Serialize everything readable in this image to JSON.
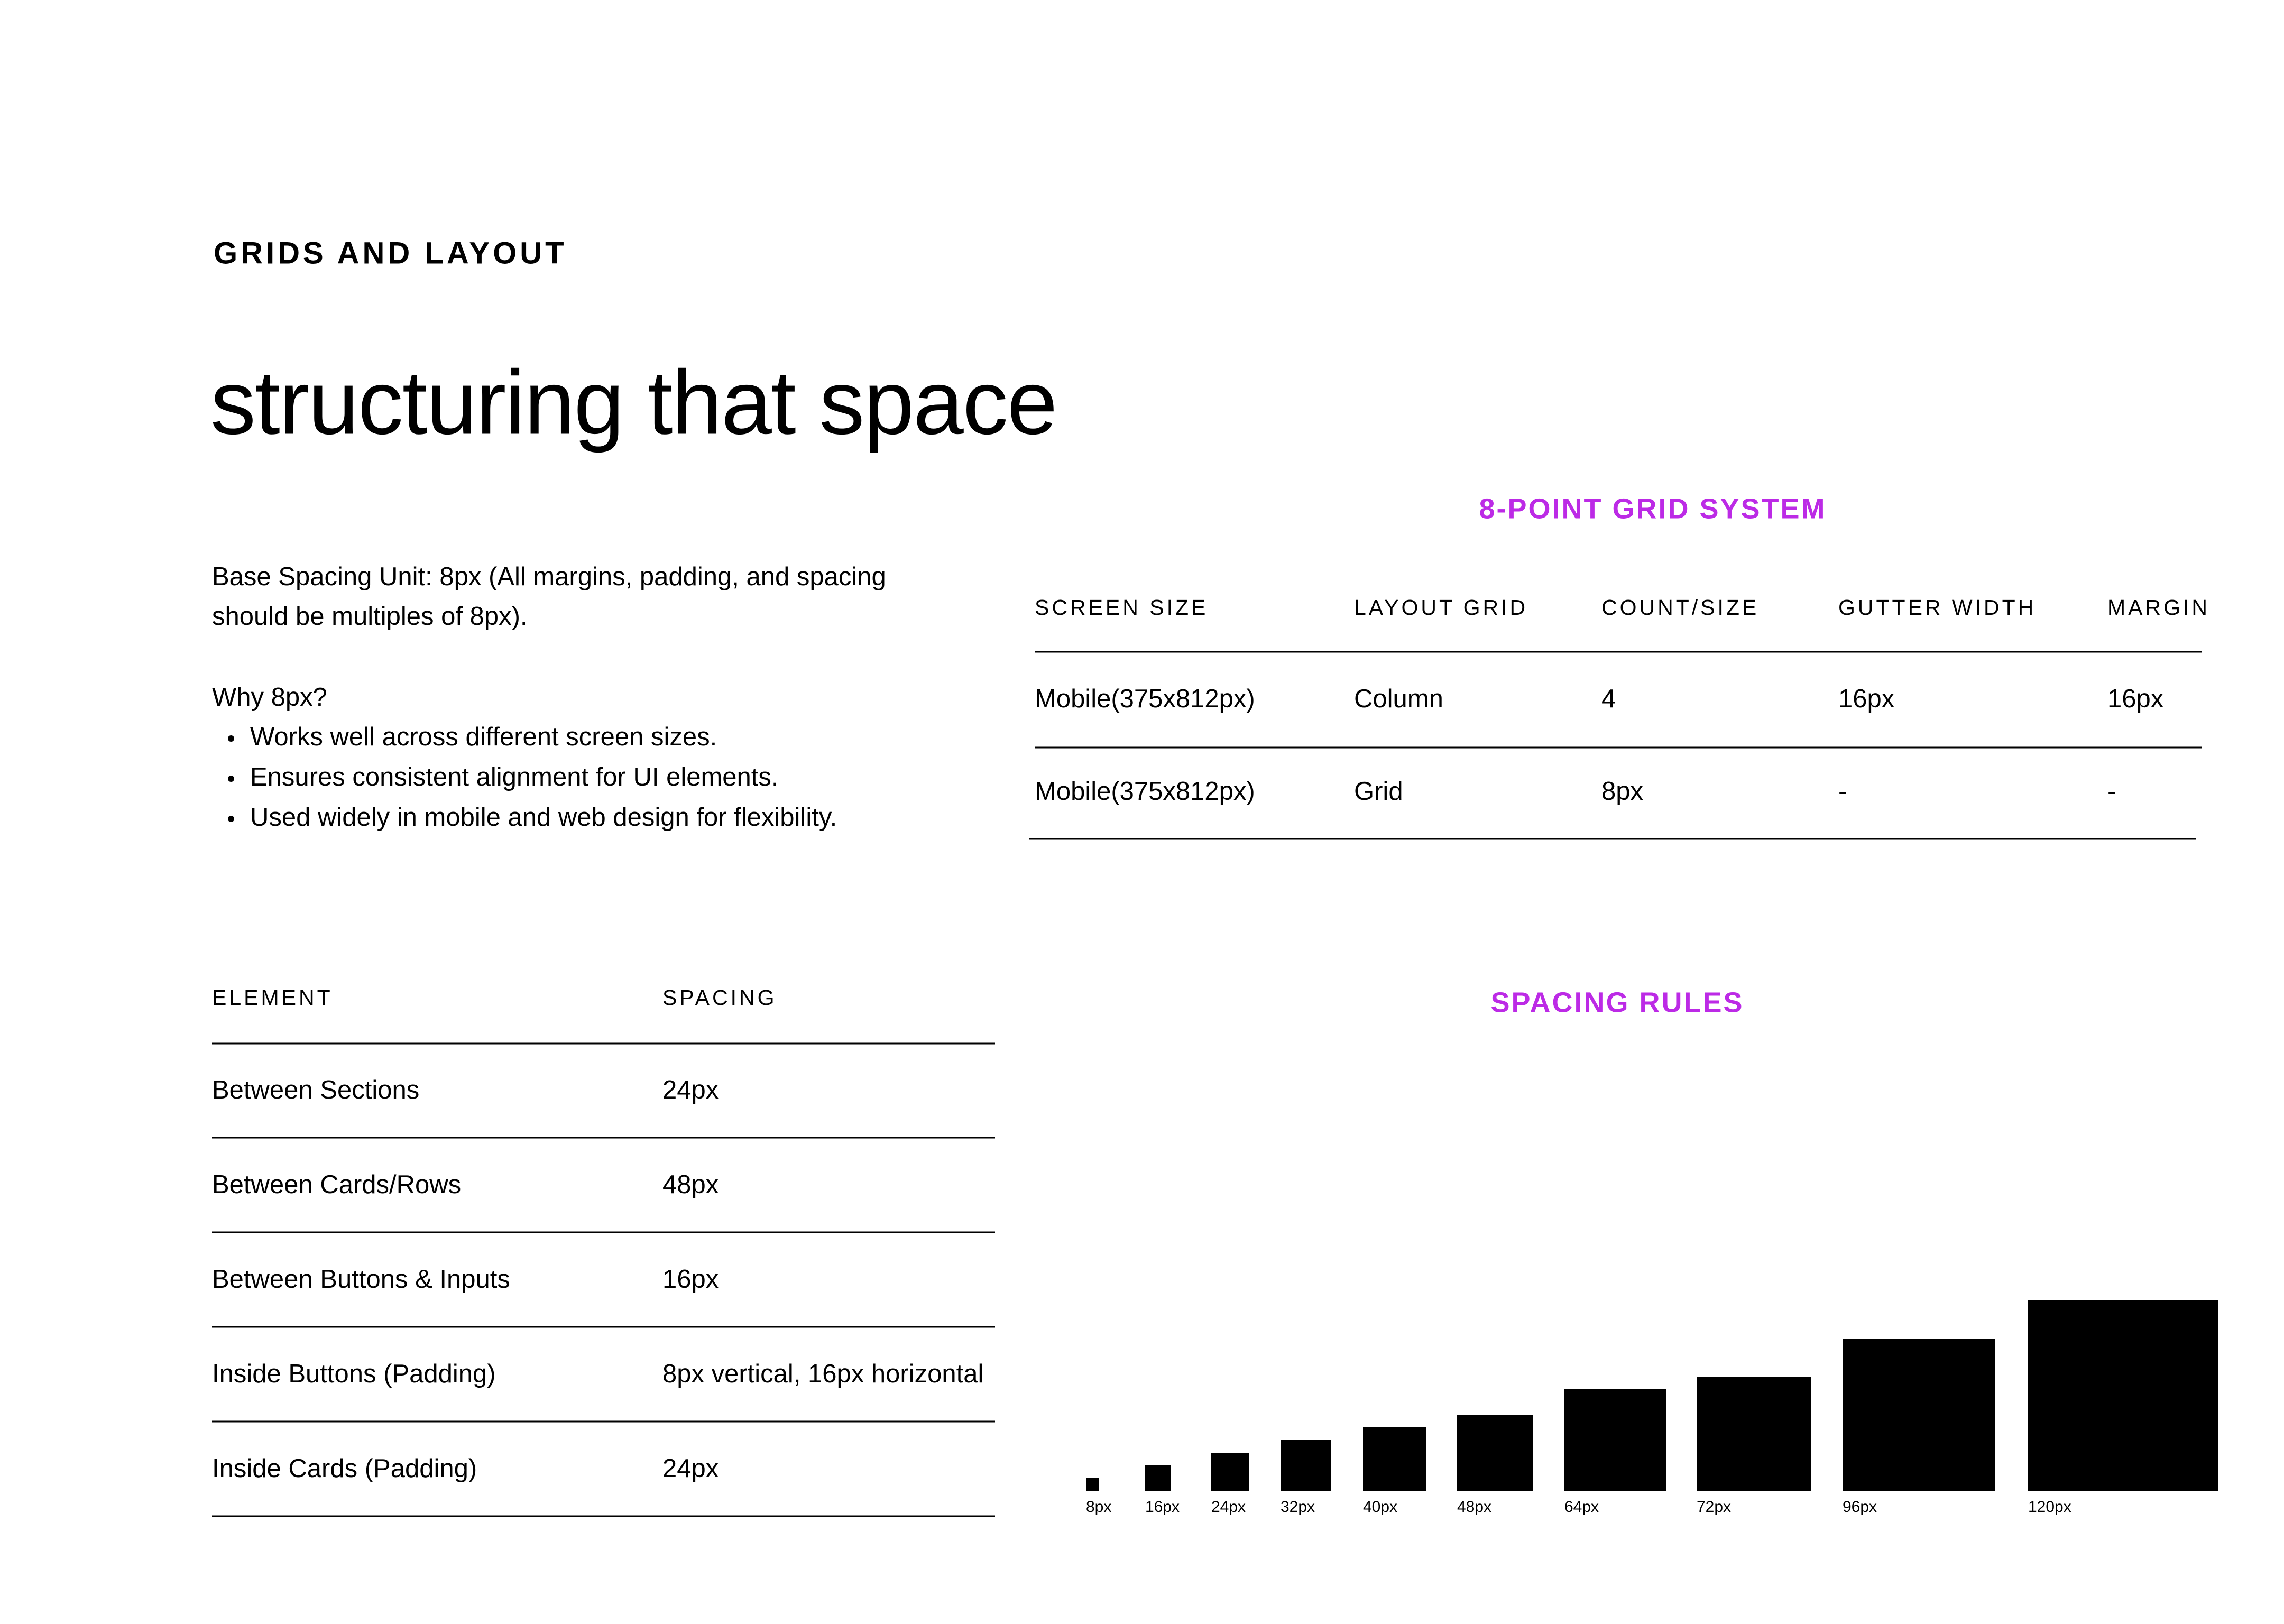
{
  "header": {
    "eyebrow": "GRIDS AND LAYOUT",
    "headline": "structuring that space"
  },
  "intro": {
    "base": [
      "Base Spacing Unit: 8px (All margins, padding, and spacing",
      "should be multiples of 8px)."
    ],
    "why_title": "Why 8px?",
    "bullets": [
      "Works well across different screen sizes.",
      "Ensures consistent alignment for UI elements.",
      "Used widely in mobile and web design for flexibility."
    ]
  },
  "grid_table": {
    "title": "8-POINT GRID SYSTEM",
    "columns": [
      "SCREEN SIZE",
      "LAYOUT GRID",
      "COUNT/SIZE",
      "GUTTER WIDTH",
      "MARGIN"
    ],
    "rows": [
      [
        "Mobile(375x812px)",
        "Column",
        "4",
        "16px",
        "16px"
      ],
      [
        "Mobile(375x812px)",
        "Grid",
        "8px",
        "-",
        "-"
      ]
    ]
  },
  "spacing_table": {
    "columns": [
      "ELEMENT",
      "SPACING"
    ],
    "rows": [
      [
        "Between Sections",
        "24px"
      ],
      [
        "Between Cards/Rows",
        "48px"
      ],
      [
        "Between Buttons & Inputs",
        "16px"
      ],
      [
        "Inside Buttons (Padding)",
        "8px vertical, 16px horizontal"
      ],
      [
        "Inside Cards (Padding)",
        "24px"
      ]
    ]
  },
  "spacing_rules": {
    "title": "SPACING RULES",
    "items": [
      {
        "value": 8,
        "label": "8px"
      },
      {
        "value": 16,
        "label": "16px"
      },
      {
        "value": 24,
        "label": "24px"
      },
      {
        "value": 32,
        "label": "32px"
      },
      {
        "value": 40,
        "label": "40px"
      },
      {
        "value": 48,
        "label": "48px"
      },
      {
        "value": 64,
        "label": "64px"
      },
      {
        "value": 72,
        "label": "72px"
      },
      {
        "value": 96,
        "label": "96px"
      },
      {
        "value": 120,
        "label": "120px"
      }
    ]
  }
}
